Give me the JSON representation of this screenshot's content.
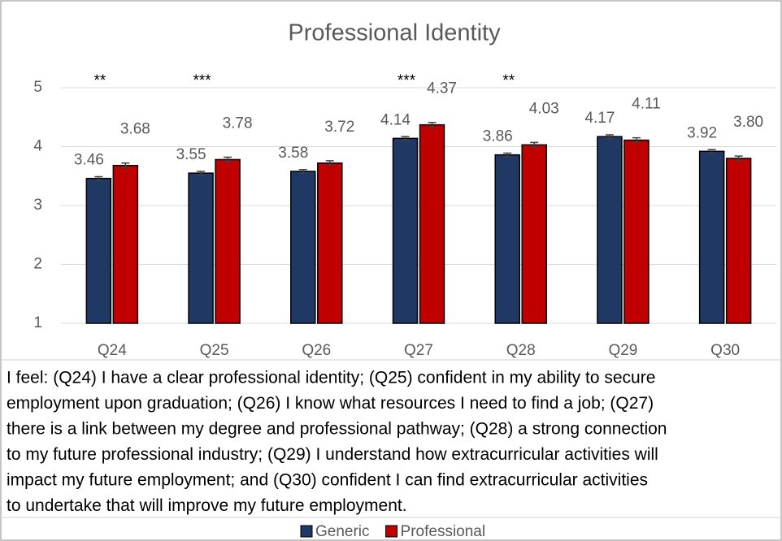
{
  "chart_data": {
    "type": "bar",
    "title": "Professional Identity",
    "categories": [
      "Q24",
      "Q25",
      "Q26",
      "Q27",
      "Q28",
      "Q29",
      "Q30"
    ],
    "series": [
      {
        "name": "Generic",
        "color": "#1f3864",
        "values": [
          3.46,
          3.55,
          3.58,
          4.14,
          3.86,
          4.17,
          3.92
        ],
        "value_labels": [
          "3.46",
          "3.55",
          "3.58",
          "4.14",
          "3.86",
          "4.17",
          "3.92"
        ],
        "errors": [
          0.03,
          0.03,
          0.03,
          0.03,
          0.03,
          0.03,
          0.03
        ]
      },
      {
        "name": "Professional",
        "color": "#c00000",
        "values": [
          3.68,
          3.78,
          3.72,
          4.37,
          4.03,
          4.11,
          3.8
        ],
        "value_labels": [
          "3.68",
          "3.78",
          "3.72",
          "4.37",
          "4.03",
          "4.11",
          "3.80"
        ],
        "errors": [
          0.04,
          0.04,
          0.04,
          0.04,
          0.04,
          0.04,
          0.04
        ]
      }
    ],
    "annotations": [
      {
        "text": "**",
        "category": "Q24"
      },
      {
        "text": "***",
        "category": "Q25"
      },
      {
        "text": "***",
        "category": "Q27"
      },
      {
        "text": "**",
        "category": "Q28"
      }
    ],
    "ylim": [
      1,
      5
    ],
    "yticks": [
      1,
      2,
      3,
      4,
      5
    ],
    "grid": true,
    "caption": [
      "I feel: (Q24) I have a clear professional identity; (Q25) confident in my ability to secure",
      "employment upon graduation; (Q26) I know what resources I need to find a job; (Q27)",
      "there is a link between my degree and professional pathway; (Q28) a strong connection",
      "to my future professional industry; (Q29) I understand how extracurricular activities will",
      "impact my future employment; and (Q30) confident I can find extracurricular activities",
      "to undertake that will improve my future employment."
    ]
  }
}
